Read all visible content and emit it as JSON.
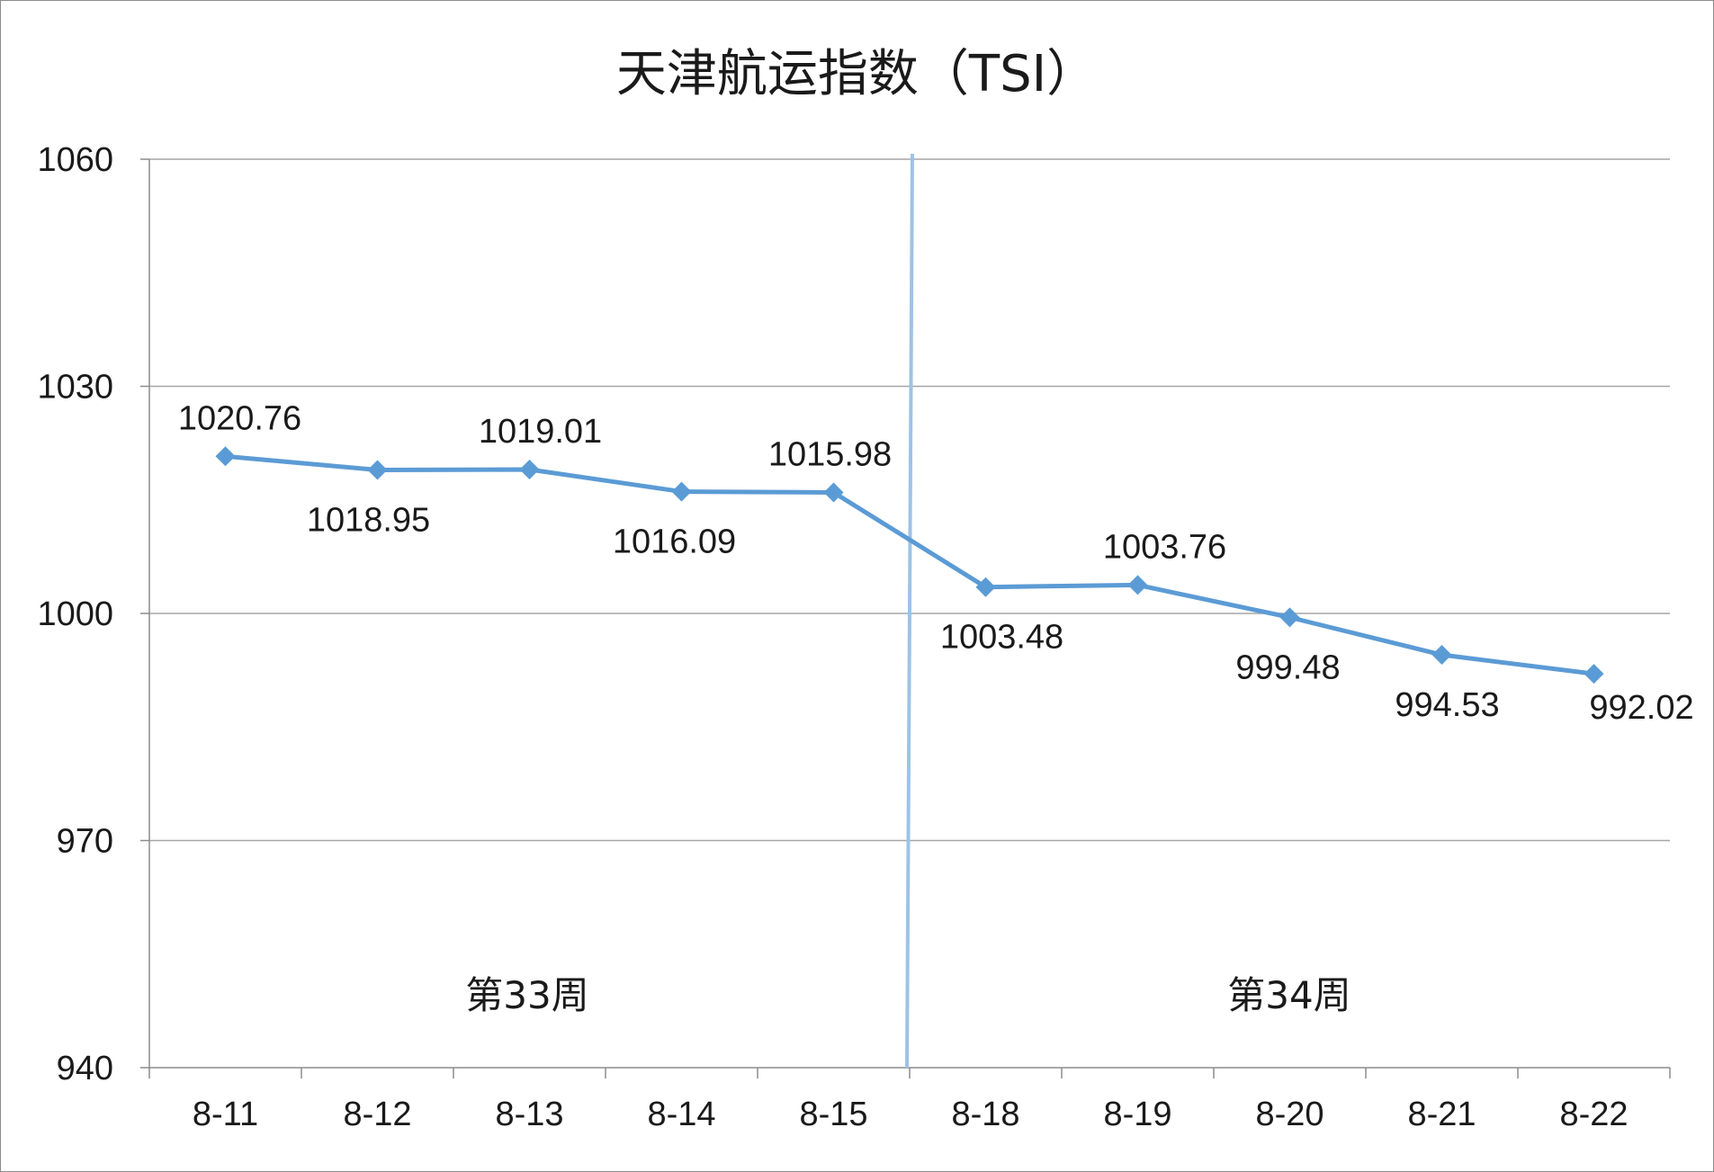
{
  "chart_data": {
    "type": "line",
    "title": "天津航运指数（TSI）",
    "categories": [
      "8-11",
      "8-12",
      "8-13",
      "8-14",
      "8-15",
      "8-18",
      "8-19",
      "8-20",
      "8-21",
      "8-22"
    ],
    "series": [
      {
        "values": [
          1020.76,
          1018.95,
          1019.01,
          1016.09,
          1015.98,
          1003.48,
          1003.76,
          999.48,
          994.53,
          992.02
        ],
        "labels": [
          "1020.76",
          "1018.95",
          "1019.01",
          "1016.09",
          "1015.98",
          "1003.48",
          "1003.76",
          "999.48",
          "994.53",
          "992.02"
        ],
        "color": "#5b9bd5"
      }
    ],
    "y_ticks": [
      "940",
      "970",
      "1000",
      "1030",
      "1060"
    ],
    "ylim": [
      940,
      1060
    ],
    "grid": true,
    "annotations": [
      "第33周",
      "第34周"
    ],
    "divider": {
      "between": [
        "8-15",
        "8-18"
      ],
      "color": "#9dc3e6"
    }
  }
}
